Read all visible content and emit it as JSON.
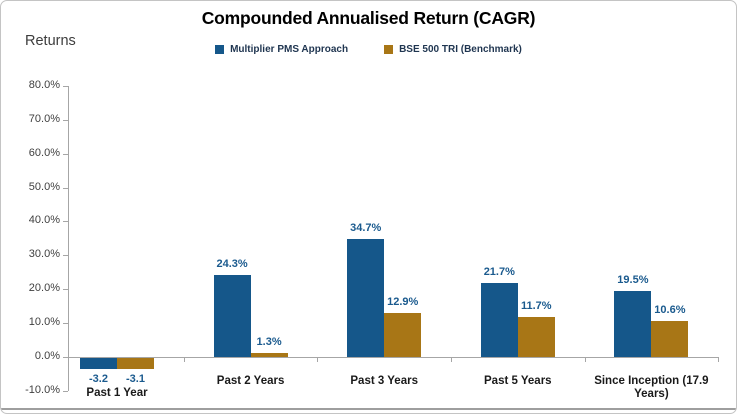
{
  "card": {
    "title": "Compounded Annualised Return (CAGR)",
    "y_axis_title": "Returns"
  },
  "chart_data": {
    "type": "bar",
    "title": "Compounded Annualised Return (CAGR)",
    "ylabel": "Returns",
    "xlabel": "",
    "categories": [
      "Past 1 Year",
      "Past 2 Years",
      "Past 3 Years",
      "Past 5 Years",
      "Since Inception (17.9 Years)"
    ],
    "series": [
      {
        "name": "Multiplier PMS Approach",
        "color": "#15578A",
        "values": [
          -3.2,
          24.3,
          34.7,
          21.7,
          19.5
        ],
        "data_labels": [
          "-3.2",
          "24.3%",
          "34.7%",
          "21.7%",
          "19.5%"
        ]
      },
      {
        "name": "BSE 500 TRI (Benchmark)",
        "color": "#A87616",
        "values": [
          -3.1,
          1.3,
          12.9,
          11.7,
          10.6
        ],
        "data_labels": [
          "-3.1",
          "1.3%",
          "12.9%",
          "11.7%",
          "10.6%"
        ]
      }
    ],
    "y_tick_labels": [
      "80.0%",
      "70.0%",
      "60.0%",
      "50.0%",
      "40.0%",
      "30.0%",
      "20.0%",
      "10.0%",
      "0.0%",
      "-10.0%"
    ],
    "y_tick_values": [
      80,
      70,
      60,
      50,
      40,
      30,
      20,
      10,
      0,
      -10
    ],
    "ylim": [
      -10,
      80
    ],
    "grid": false,
    "legend_position": "top",
    "data_label_color": "#1A5A8E",
    "axis_line_color": "#A6A6A6",
    "category_label_color": "#1A1A1A",
    "tick_label_color": "#404040"
  }
}
